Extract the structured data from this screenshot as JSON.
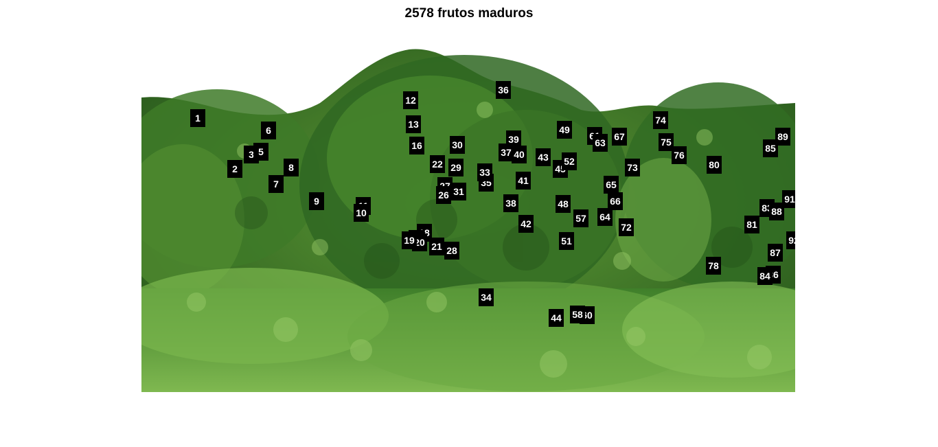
{
  "figure": {
    "title": "2578 frutos maduros"
  },
  "photo": {
    "subject": "dense green shrubs and foliage",
    "colors": {
      "sky": "#ffffff",
      "foliage_dark": "#2f6b22",
      "foliage_mid": "#4f8f2f",
      "foliage_light": "#8cc05a"
    }
  },
  "markers": [
    "1",
    "2",
    "3",
    "5",
    "6",
    "7",
    "8",
    "9",
    "11",
    "12",
    "13",
    "16",
    "18",
    "21",
    "22",
    "27",
    "26",
    "28",
    "29",
    "30",
    "31",
    "34",
    "35",
    "36",
    "37",
    "38",
    "39",
    "40",
    "41",
    "42",
    "43",
    "45",
    "48",
    "49",
    "51",
    "52",
    "57",
    "60",
    "61",
    "63",
    "64",
    "65",
    "66",
    "67",
    "72",
    "73",
    "74",
    "75",
    "76",
    "78",
    "80",
    "81",
    "83",
    "85",
    "86",
    "87",
    "88",
    "89",
    "91",
    "92",
    "44",
    "58",
    "84",
    "17",
    "20",
    "33",
    "10",
    "19"
  ]
}
